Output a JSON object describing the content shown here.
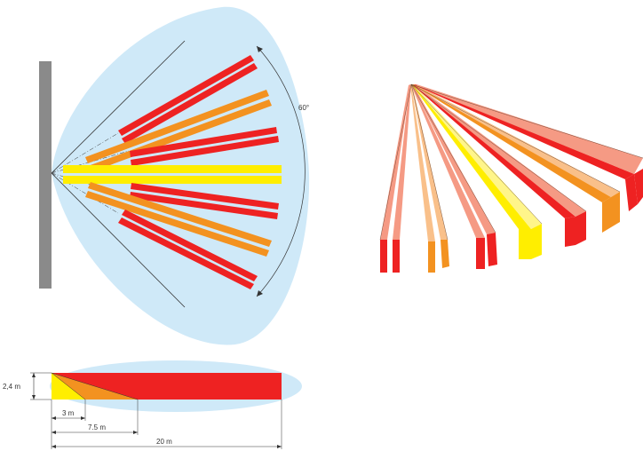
{
  "colors": {
    "coverage": "#cfe9f8",
    "wall": "#8a8a8a",
    "far": "#ee2222",
    "mid": "#f39220",
    "near": "#ffee00",
    "far_light": "#f59a84",
    "mid_light": "#f9c08a",
    "near_light": "#fff58a",
    "line": "#333333"
  },
  "top_view": {
    "angle_label": "60°"
  },
  "side_view": {
    "height_label": "2,4 m",
    "dim_3m": "3 m",
    "dim_7_5m": "7.5 m",
    "dim_20m": "20 m"
  }
}
